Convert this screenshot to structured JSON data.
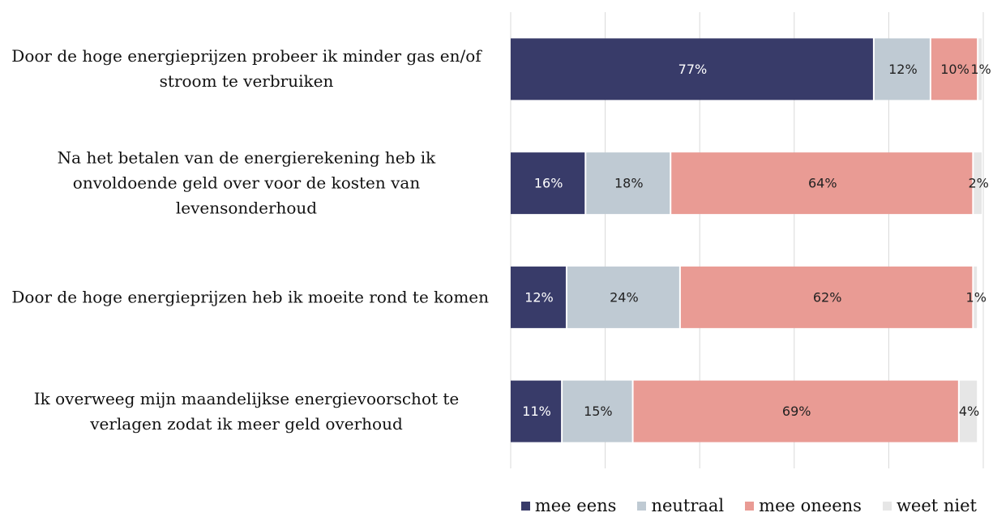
{
  "chart_data": {
    "type": "stacked_bar",
    "orientation": "horizontal",
    "categories": [
      "Door de hoge energieprijzen probeer ik minder gas en/of stroom te verbruiken",
      "Na het betalen van de energierekening heb ik onvoldoende geld over voor de kosten van levensonderhoud",
      "Door de hoge energieprijzen heb ik moeite rond te komen",
      "Ik overweeg mijn maandelijkse energievoorschot te verlagen zodat ik meer geld overhoud"
    ],
    "series": [
      {
        "name": "mee eens",
        "color": "#383b69",
        "values": [
          77,
          16,
          12,
          11
        ],
        "value_labels": [
          "77%",
          "16%",
          "12%",
          "11%"
        ]
      },
      {
        "name": "neutraal",
        "color": "#bfcad3",
        "values": [
          12,
          18,
          24,
          15
        ],
        "value_labels": [
          "12%",
          "18%",
          "24%",
          "15%"
        ]
      },
      {
        "name": "mee oneens",
        "color": "#e99b94",
        "values": [
          10,
          64,
          62,
          69
        ],
        "value_labels": [
          "10%",
          "64%",
          "62%",
          "69%"
        ]
      },
      {
        "name": "weet niet",
        "color": "#e6e6e6",
        "values": [
          1,
          2,
          1,
          4
        ],
        "value_labels": [
          "1%",
          "2%",
          "1%",
          "4%"
        ]
      }
    ],
    "xlim": [
      0,
      100
    ],
    "xticks": [
      0,
      20,
      40,
      60,
      80,
      100
    ],
    "grid": true,
    "legend": "bottom-right"
  }
}
